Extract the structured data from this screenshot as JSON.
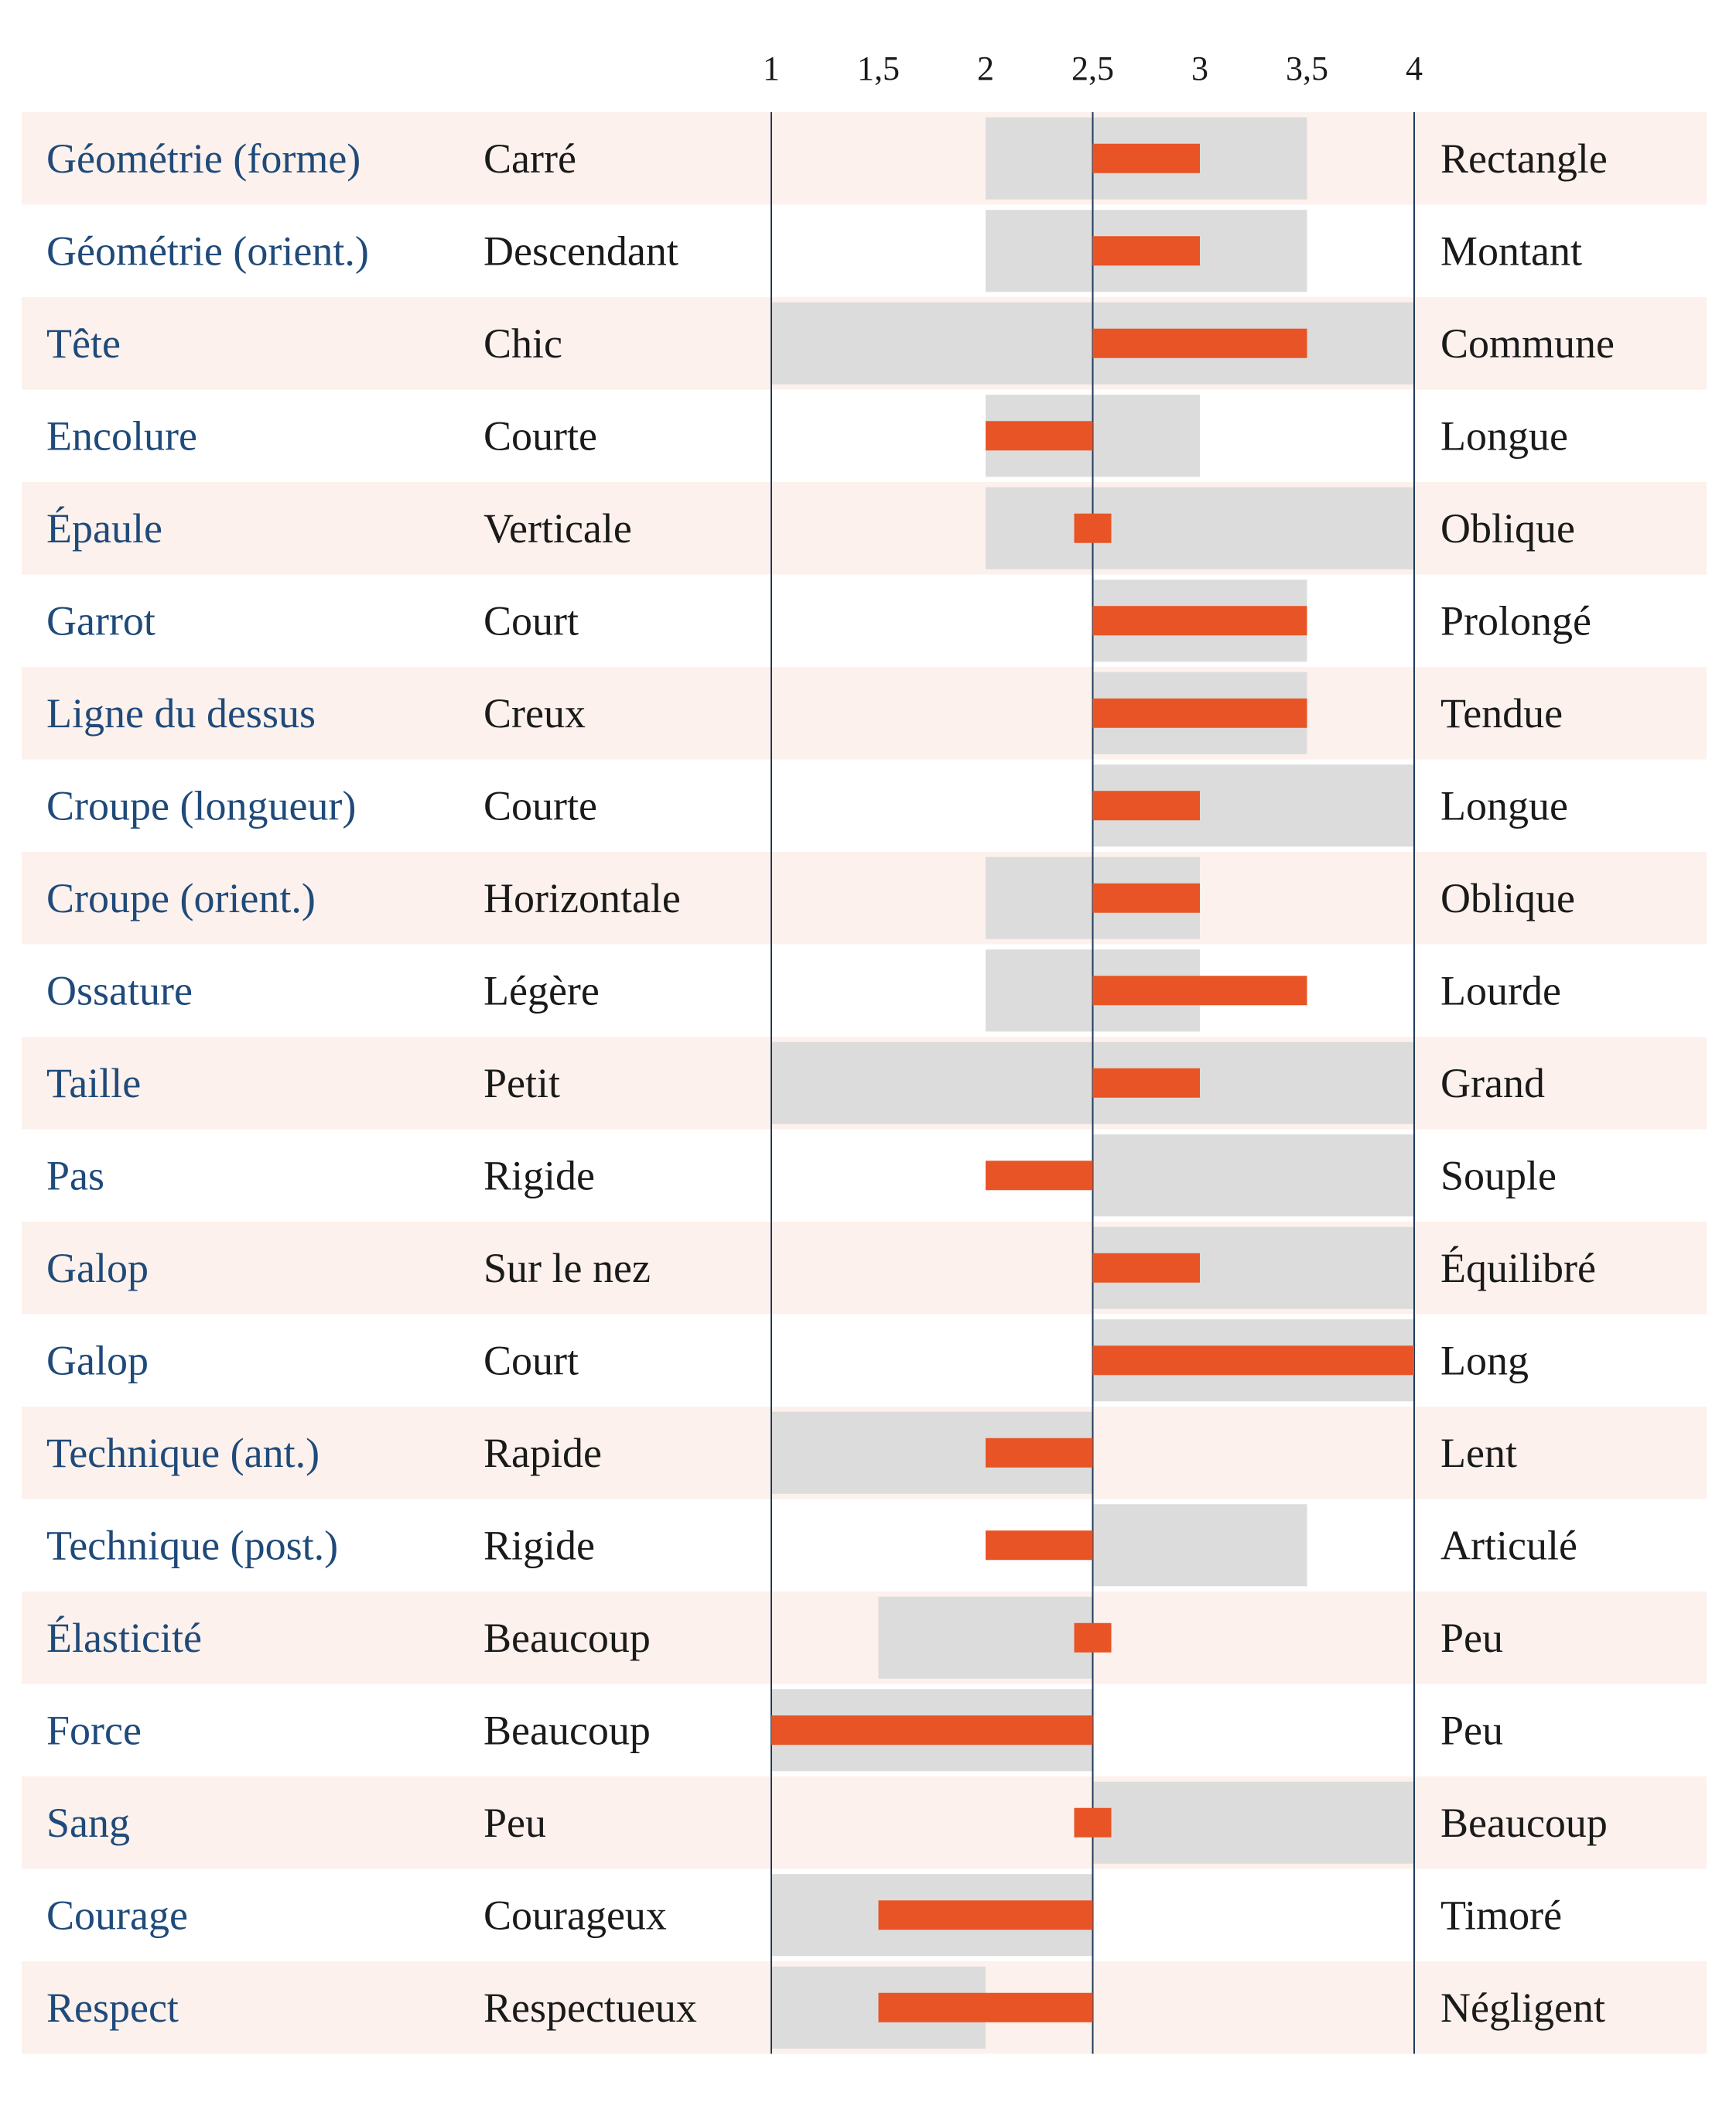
{
  "chart_data": {
    "type": "bar",
    "xlim": [
      1,
      4
    ],
    "x_ticks": [
      "1",
      "1,5",
      "2",
      "2,5",
      "3",
      "3,5",
      "4"
    ],
    "x_tick_values": [
      1,
      1.5,
      2,
      2.5,
      3,
      3.5,
      4
    ],
    "reference_value": 2.5,
    "colors": {
      "trait": "#1f4a7a",
      "text": "#1a1a1a",
      "stripe": "#fcf1ec",
      "range": "#dcdcdc",
      "bar": "#e85426",
      "axis": "#1f3a5a"
    },
    "rows": [
      {
        "trait": "Géométrie (forme)",
        "low": "Carré",
        "high": "Rectangle",
        "range": [
          2,
          3.5
        ],
        "value": 3
      },
      {
        "trait": "Géométrie (orient.)",
        "low": "Descendant",
        "high": "Montant",
        "range": [
          2,
          3.5
        ],
        "value": 3
      },
      {
        "trait": "Tête",
        "low": "Chic",
        "high": "Commune",
        "range": [
          1,
          4
        ],
        "value": 3.5
      },
      {
        "trait": "Encolure",
        "low": "Courte",
        "high": "Longue",
        "range": [
          2,
          3
        ],
        "value": 2
      },
      {
        "trait": "Épaule",
        "low": "Verticale",
        "high": "Oblique",
        "range": [
          2,
          4
        ],
        "value": 2.5
      },
      {
        "trait": "Garrot",
        "low": "Court",
        "high": "Prolongé",
        "range": [
          2.5,
          3.5
        ],
        "value": 3.5
      },
      {
        "trait": "Ligne du dessus",
        "low": "Creux",
        "high": "Tendue",
        "range": [
          2.5,
          3.5
        ],
        "value": 3.5
      },
      {
        "trait": "Croupe (longueur)",
        "low": "Courte",
        "high": "Longue",
        "range": [
          2.5,
          4
        ],
        "value": 3
      },
      {
        "trait": "Croupe (orient.)",
        "low": "Horizontale",
        "high": "Oblique",
        "range": [
          2,
          3
        ],
        "value": 3
      },
      {
        "trait": "Ossature",
        "low": "Légère",
        "high": "Lourde",
        "range": [
          2,
          3
        ],
        "value": 3.5
      },
      {
        "trait": "Taille",
        "low": "Petit",
        "high": "Grand",
        "range": [
          1,
          4
        ],
        "value": 3
      },
      {
        "trait": "Pas",
        "low": "Rigide",
        "high": "Souple",
        "range": [
          2.5,
          4
        ],
        "value": 2
      },
      {
        "trait": "Galop",
        "low": "Sur le nez",
        "high": "Équilibré",
        "range": [
          2.5,
          4
        ],
        "value": 3
      },
      {
        "trait": "Galop",
        "low": "Court",
        "high": "Long",
        "range": [
          2.5,
          4
        ],
        "value": 4
      },
      {
        "trait": "Technique (ant.)",
        "low": "Rapide",
        "high": "Lent",
        "range": [
          1,
          2.5
        ],
        "value": 2
      },
      {
        "trait": "Technique (post.)",
        "low": "Rigide",
        "high": "Articulé",
        "range": [
          2.5,
          3.5
        ],
        "value": 2
      },
      {
        "trait": "Élasticité",
        "low": "Beaucoup",
        "high": "Peu",
        "range": [
          1.5,
          2.5
        ],
        "value": 2.5
      },
      {
        "trait": "Force",
        "low": "Beaucoup",
        "high": "Peu",
        "range": [
          1,
          2.5
        ],
        "value": 1
      },
      {
        "trait": "Sang",
        "low": "Peu",
        "high": "Beaucoup",
        "range": [
          2.5,
          4
        ],
        "value": 2.5
      },
      {
        "trait": "Courage",
        "low": "Courageux",
        "high": "Timoré",
        "range": [
          1,
          2.5
        ],
        "value": 1.5
      },
      {
        "trait": "Respect",
        "low": "Respectueux",
        "high": "Négligent",
        "range": [
          1,
          2
        ],
        "value": 1.5
      }
    ]
  }
}
